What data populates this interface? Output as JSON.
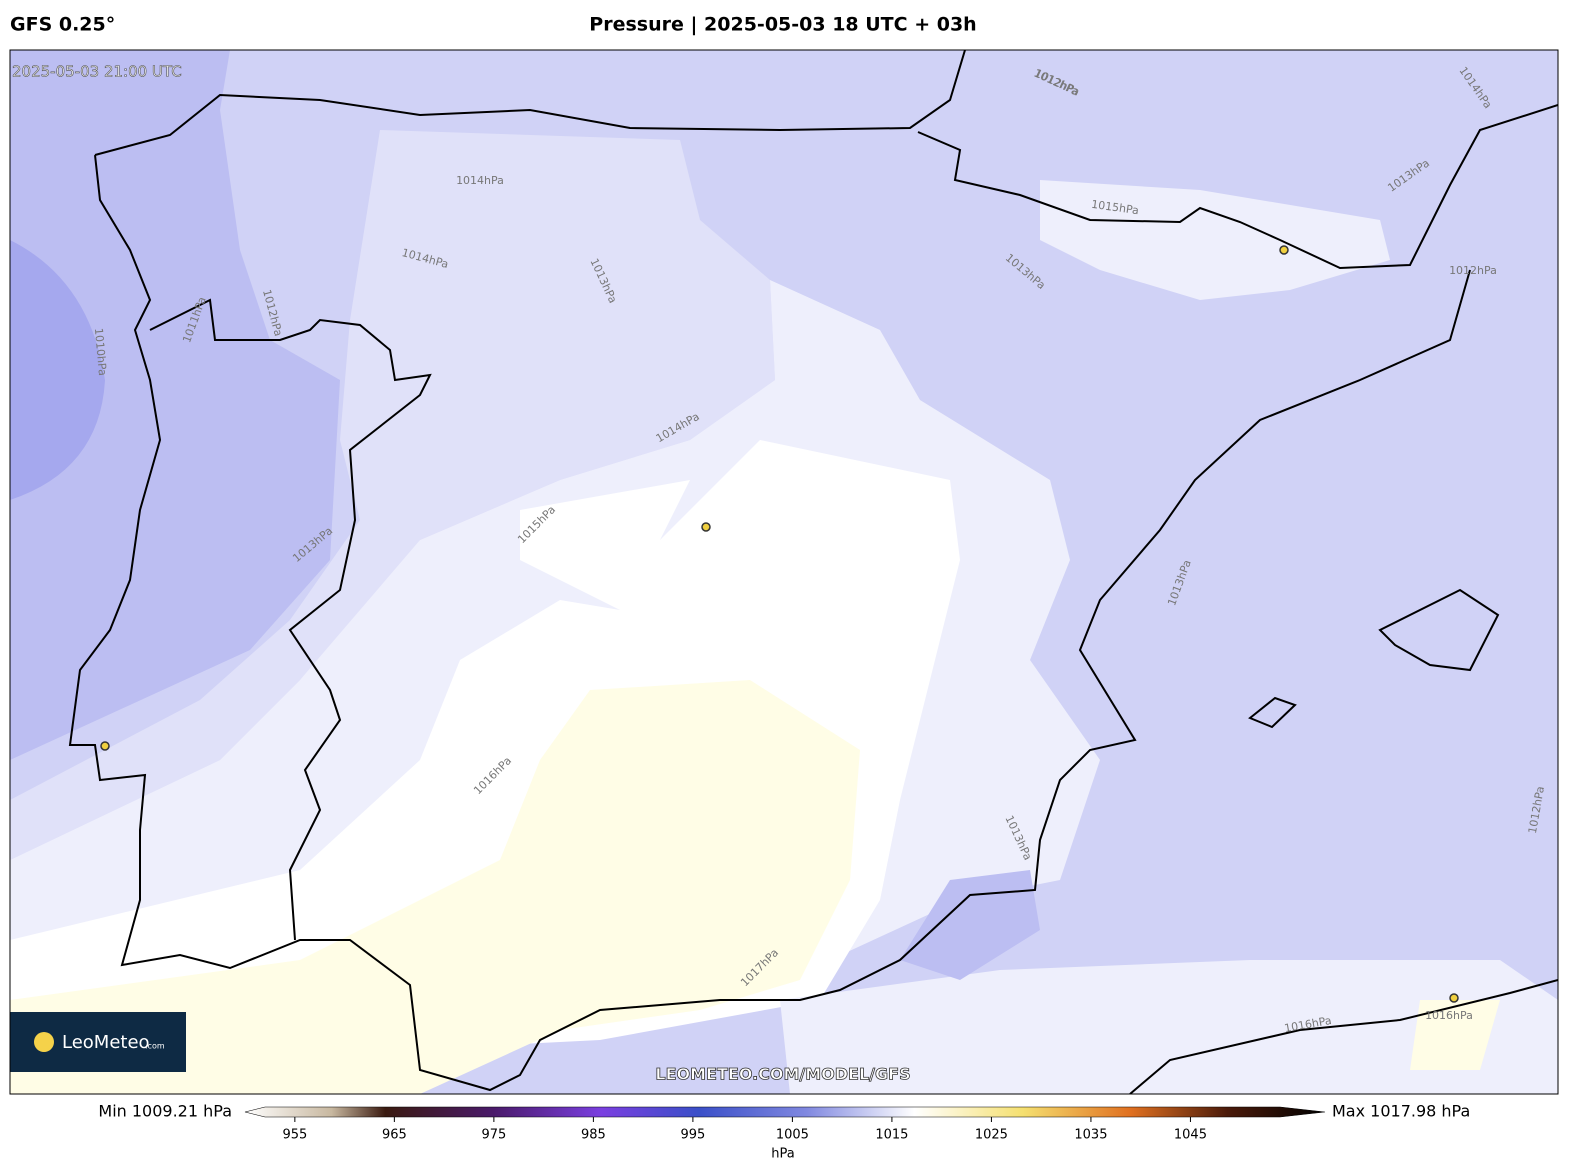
{
  "header": {
    "model": "GFS 0.25°",
    "title": "Pressure | 2025-05-03 18 UTC + 03h"
  },
  "map": {
    "valid_time": "2025-05-03 21:00 UTC",
    "watermark": "LEOMETEO.COM/MODEL/GFS",
    "logo": {
      "name": "LeoMeteo",
      "suffix": ".com"
    },
    "contour_labels": [
      "1012hPa",
      "1014hPa",
      "1013hPa",
      "1014hPa",
      "1015hPa",
      "1014hPa",
      "1013hPa",
      "1013hPa",
      "1012hPa",
      "1011hPa",
      "1010hPa",
      "1014hPa",
      "1015hPa",
      "1013hPa",
      "1016hPa",
      "1013hPa",
      "1012hPa",
      "1013hPa",
      "1017hPa",
      "1016hPa",
      "1016hPa",
      "1012hPa",
      "1012hPa"
    ]
  },
  "colorbar": {
    "min_label": "Min 1009.21 hPa",
    "max_label": "Max 1017.98 hPa",
    "unit": "hPa",
    "range": [
      952,
      1054
    ],
    "ticks": [
      955,
      965,
      975,
      985,
      995,
      1005,
      1015,
      1025,
      1035,
      1045
    ]
  }
}
